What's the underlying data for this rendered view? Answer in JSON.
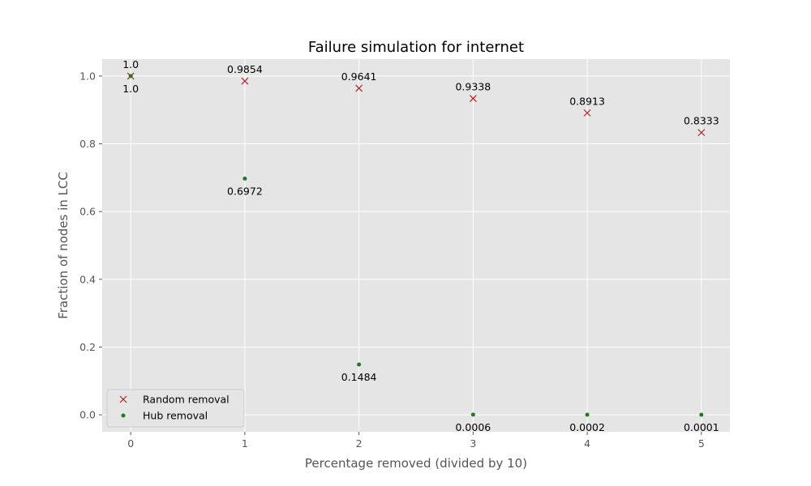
{
  "chart_data": {
    "type": "scatter",
    "title": "Failure simulation for internet",
    "xlabel": "Percentage removed (divided by 10)",
    "ylabel": "Fraction of nodes in LCC",
    "xlim": [
      -0.25,
      5.25
    ],
    "ylim": [
      -0.05,
      1.05
    ],
    "x_ticks": [
      0,
      1,
      2,
      3,
      4,
      5
    ],
    "y_ticks": [
      0.0,
      0.2,
      0.4,
      0.6,
      0.8,
      1.0
    ],
    "x_tick_labels": [
      "0",
      "1",
      "2",
      "3",
      "4",
      "5"
    ],
    "y_tick_labels": [
      "0.0",
      "0.2",
      "0.4",
      "0.6",
      "0.8",
      "1.0"
    ],
    "grid": true,
    "legend_position": "bottom-left",
    "series": [
      {
        "name": "Random removal",
        "marker": "x",
        "color": "#b22222",
        "label_position": "above",
        "x": [
          0,
          1,
          2,
          3,
          4,
          5
        ],
        "y": [
          1.0,
          0.9854,
          0.9641,
          0.9338,
          0.8913,
          0.8333
        ],
        "labels": [
          "1.0",
          "0.9854",
          "0.9641",
          "0.9338",
          "0.8913",
          "0.8333"
        ]
      },
      {
        "name": "Hub removal",
        "marker": "dot",
        "color": "#1e7b1e",
        "label_position": "below",
        "x": [
          0,
          1,
          2,
          3,
          4,
          5
        ],
        "y": [
          1.0,
          0.6972,
          0.1484,
          0.0006,
          0.0002,
          0.0001
        ],
        "labels": [
          "1.0",
          "0.6972",
          "0.1484",
          "0.0006",
          "0.0002",
          "0.0001"
        ]
      }
    ]
  }
}
